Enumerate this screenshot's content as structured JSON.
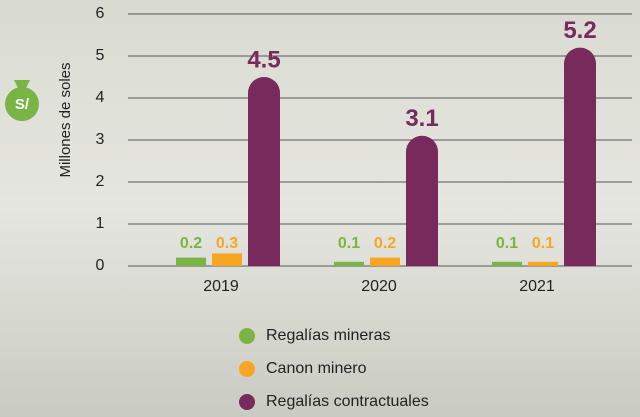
{
  "chart_data": {
    "type": "bar",
    "y_label": "Millones de soles",
    "annotation": "S/",
    "categories": [
      "2019",
      "2020",
      "2021"
    ],
    "series": [
      {
        "name": "Regalías mineras",
        "color": "#79b444",
        "values": [
          0.2,
          0.1,
          0.1
        ]
      },
      {
        "name": "Canon minero",
        "color": "#f6a623",
        "values": [
          0.3,
          0.2,
          0.1
        ]
      },
      {
        "name": "Regalías contractuales",
        "color": "#772a5b",
        "values": [
          4.5,
          3.1,
          5.2
        ]
      }
    ],
    "ylim": [
      0,
      6
    ],
    "yticks": [
      0,
      1,
      2,
      3,
      4,
      5,
      6
    ],
    "grid": true,
    "legend": "bottom"
  }
}
